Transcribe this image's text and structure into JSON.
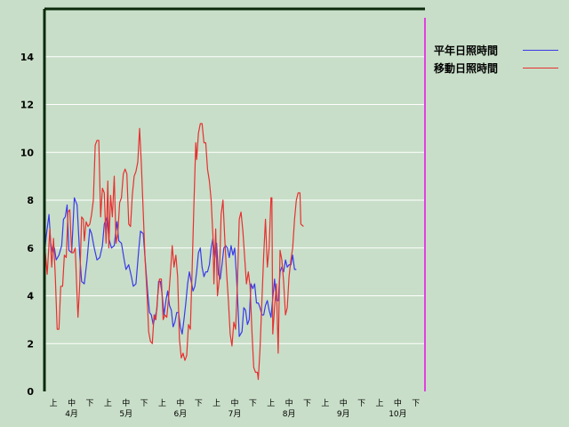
{
  "chart_data": {
    "type": "line",
    "ylim": [
      0,
      16
    ],
    "yticks": [
      0,
      2,
      4,
      6,
      8,
      10,
      12,
      14
    ],
    "grid": true,
    "legend_position": "top-right",
    "x_range": [
      0,
      21
    ],
    "x_sublabels": [
      "上",
      "中",
      "下",
      "上",
      "中",
      "下",
      "上",
      "中",
      "下",
      "上",
      "中",
      "下",
      "上",
      "中",
      "下",
      "上",
      "中",
      "下",
      "上",
      "中",
      "下"
    ],
    "months": [
      "4月",
      "5月",
      "6月",
      "7月",
      "8月",
      "9月",
      "10月"
    ],
    "series": [
      {
        "name": "平年日照時間",
        "color": "#3a3ae8",
        "points": [
          [
            0.0,
            5.7
          ],
          [
            0.1,
            6.5
          ],
          [
            0.25,
            7.4
          ],
          [
            0.35,
            6.2
          ],
          [
            0.45,
            5.8
          ],
          [
            0.55,
            6.0
          ],
          [
            0.65,
            5.5
          ],
          [
            0.8,
            5.7
          ],
          [
            0.95,
            6.1
          ],
          [
            1.05,
            7.2
          ],
          [
            1.15,
            7.3
          ],
          [
            1.25,
            7.8
          ],
          [
            1.35,
            5.9
          ],
          [
            1.5,
            5.8
          ],
          [
            1.65,
            8.1
          ],
          [
            1.8,
            7.8
          ],
          [
            1.95,
            5.7
          ],
          [
            2.05,
            4.6
          ],
          [
            2.2,
            4.5
          ],
          [
            2.35,
            5.5
          ],
          [
            2.5,
            6.8
          ],
          [
            2.6,
            6.6
          ],
          [
            2.75,
            6.0
          ],
          [
            2.9,
            5.5
          ],
          [
            3.05,
            5.6
          ],
          [
            3.2,
            6.1
          ],
          [
            3.3,
            7.0
          ],
          [
            3.45,
            7.3
          ],
          [
            3.55,
            6.4
          ],
          [
            3.7,
            6.0
          ],
          [
            3.85,
            6.1
          ],
          [
            4.0,
            7.1
          ],
          [
            4.1,
            6.3
          ],
          [
            4.25,
            6.2
          ],
          [
            4.4,
            5.5
          ],
          [
            4.5,
            5.1
          ],
          [
            4.65,
            5.3
          ],
          [
            4.8,
            4.8
          ],
          [
            4.9,
            4.4
          ],
          [
            5.05,
            4.5
          ],
          [
            5.2,
            5.9
          ],
          [
            5.3,
            6.7
          ],
          [
            5.45,
            6.6
          ],
          [
            5.55,
            5.6
          ],
          [
            5.7,
            4.1
          ],
          [
            5.8,
            3.3
          ],
          [
            5.9,
            3.2
          ],
          [
            6.0,
            2.8
          ],
          [
            6.1,
            3.1
          ],
          [
            6.2,
            3.4
          ],
          [
            6.3,
            4.6
          ],
          [
            6.4,
            4.6
          ],
          [
            6.5,
            4.0
          ],
          [
            6.6,
            3.2
          ],
          [
            6.7,
            3.8
          ],
          [
            6.8,
            4.2
          ],
          [
            6.9,
            3.6
          ],
          [
            7.0,
            3.4
          ],
          [
            7.1,
            2.7
          ],
          [
            7.2,
            2.9
          ],
          [
            7.3,
            3.3
          ],
          [
            7.4,
            3.3
          ],
          [
            7.5,
            2.7
          ],
          [
            7.6,
            2.4
          ],
          [
            7.7,
            3.0
          ],
          [
            7.8,
            3.7
          ],
          [
            7.9,
            4.5
          ],
          [
            8.0,
            5.0
          ],
          [
            8.1,
            4.6
          ],
          [
            8.2,
            4.2
          ],
          [
            8.3,
            4.4
          ],
          [
            8.4,
            5.0
          ],
          [
            8.5,
            5.8
          ],
          [
            8.6,
            6.0
          ],
          [
            8.7,
            5.2
          ],
          [
            8.8,
            4.8
          ],
          [
            8.9,
            5.0
          ],
          [
            9.0,
            5.0
          ],
          [
            9.1,
            5.3
          ],
          [
            9.2,
            6.0
          ],
          [
            9.3,
            6.4
          ],
          [
            9.4,
            5.6
          ],
          [
            9.5,
            6.2
          ],
          [
            9.6,
            4.9
          ],
          [
            9.7,
            4.7
          ],
          [
            9.8,
            5.3
          ],
          [
            9.9,
            6.0
          ],
          [
            10.0,
            6.1
          ],
          [
            10.1,
            6.0
          ],
          [
            10.2,
            5.6
          ],
          [
            10.3,
            6.1
          ],
          [
            10.4,
            5.7
          ],
          [
            10.5,
            6.0
          ],
          [
            10.6,
            4.8
          ],
          [
            10.7,
            3.2
          ],
          [
            10.75,
            2.3
          ],
          [
            10.9,
            2.5
          ],
          [
            11.0,
            3.5
          ],
          [
            11.1,
            3.4
          ],
          [
            11.2,
            2.8
          ],
          [
            11.3,
            3.0
          ],
          [
            11.4,
            4.5
          ],
          [
            11.5,
            4.3
          ],
          [
            11.6,
            4.5
          ],
          [
            11.7,
            3.7
          ],
          [
            11.8,
            3.7
          ],
          [
            11.9,
            3.5
          ],
          [
            12.0,
            3.2
          ],
          [
            12.1,
            3.2
          ],
          [
            12.2,
            3.6
          ],
          [
            12.3,
            3.8
          ],
          [
            12.4,
            3.4
          ],
          [
            12.5,
            3.1
          ],
          [
            12.6,
            3.9
          ],
          [
            12.7,
            4.7
          ],
          [
            12.8,
            3.8
          ],
          [
            12.9,
            3.8
          ],
          [
            13.0,
            5.0
          ],
          [
            13.1,
            5.2
          ],
          [
            13.2,
            5.0
          ],
          [
            13.3,
            5.5
          ],
          [
            13.4,
            5.2
          ],
          [
            13.5,
            5.3
          ],
          [
            13.6,
            5.3
          ],
          [
            13.7,
            5.7
          ],
          [
            13.8,
            5.1
          ],
          [
            13.9,
            5.1
          ]
        ]
      },
      {
        "name": "移動日照時間",
        "color": "#e83030",
        "points": [
          [
            0.0,
            0.1
          ],
          [
            0.05,
            5.8
          ],
          [
            0.15,
            4.9
          ],
          [
            0.3,
            6.8
          ],
          [
            0.4,
            5.2
          ],
          [
            0.5,
            6.4
          ],
          [
            0.6,
            4.8
          ],
          [
            0.7,
            2.6
          ],
          [
            0.8,
            2.6
          ],
          [
            0.9,
            4.4
          ],
          [
            1.0,
            4.4
          ],
          [
            1.1,
            5.7
          ],
          [
            1.2,
            5.6
          ],
          [
            1.3,
            7.5
          ],
          [
            1.4,
            7.6
          ],
          [
            1.5,
            5.8
          ],
          [
            1.6,
            5.8
          ],
          [
            1.7,
            6.0
          ],
          [
            1.8,
            4.0
          ],
          [
            1.85,
            3.1
          ],
          [
            1.95,
            4.5
          ],
          [
            2.05,
            7.3
          ],
          [
            2.15,
            7.2
          ],
          [
            2.2,
            6.3
          ],
          [
            2.3,
            7.1
          ],
          [
            2.4,
            6.9
          ],
          [
            2.5,
            7.0
          ],
          [
            2.6,
            7.4
          ],
          [
            2.7,
            8.0
          ],
          [
            2.8,
            10.3
          ],
          [
            2.9,
            10.5
          ],
          [
            3.0,
            10.5
          ],
          [
            3.1,
            7.3
          ],
          [
            3.2,
            8.5
          ],
          [
            3.3,
            8.3
          ],
          [
            3.4,
            6.2
          ],
          [
            3.5,
            8.8
          ],
          [
            3.55,
            6.0
          ],
          [
            3.65,
            8.2
          ],
          [
            3.75,
            7.3
          ],
          [
            3.85,
            9.0
          ],
          [
            3.95,
            6.2
          ],
          [
            4.05,
            6.6
          ],
          [
            4.15,
            7.9
          ],
          [
            4.25,
            8.1
          ],
          [
            4.35,
            9.1
          ],
          [
            4.45,
            9.3
          ],
          [
            4.55,
            9.1
          ],
          [
            4.65,
            7.0
          ],
          [
            4.75,
            6.9
          ],
          [
            4.85,
            8.2
          ],
          [
            4.95,
            9.0
          ],
          [
            5.05,
            9.2
          ],
          [
            5.15,
            9.6
          ],
          [
            5.25,
            11.0
          ],
          [
            5.35,
            9.5
          ],
          [
            5.45,
            7.5
          ],
          [
            5.55,
            5.6
          ],
          [
            5.65,
            4.2
          ],
          [
            5.75,
            2.5
          ],
          [
            5.85,
            2.1
          ],
          [
            5.95,
            2.0
          ],
          [
            6.05,
            3.2
          ],
          [
            6.15,
            3.0
          ],
          [
            6.25,
            4.0
          ],
          [
            6.35,
            4.7
          ],
          [
            6.45,
            4.7
          ],
          [
            6.55,
            3.0
          ],
          [
            6.65,
            3.2
          ],
          [
            6.75,
            3.1
          ],
          [
            6.85,
            3.9
          ],
          [
            6.95,
            4.9
          ],
          [
            7.05,
            6.1
          ],
          [
            7.15,
            5.2
          ],
          [
            7.25,
            5.7
          ],
          [
            7.35,
            4.8
          ],
          [
            7.45,
            2.2
          ],
          [
            7.55,
            1.4
          ],
          [
            7.65,
            1.6
          ],
          [
            7.75,
            1.3
          ],
          [
            7.85,
            1.5
          ],
          [
            7.95,
            2.8
          ],
          [
            8.05,
            2.6
          ],
          [
            8.15,
            5.1
          ],
          [
            8.25,
            7.8
          ],
          [
            8.35,
            10.4
          ],
          [
            8.4,
            9.7
          ],
          [
            8.5,
            10.8
          ],
          [
            8.6,
            11.2
          ],
          [
            8.7,
            11.2
          ],
          [
            8.8,
            10.4
          ],
          [
            8.9,
            10.4
          ],
          [
            9.0,
            9.3
          ],
          [
            9.1,
            8.8
          ],
          [
            9.2,
            8.0
          ],
          [
            9.3,
            6.5
          ],
          [
            9.35,
            4.5
          ],
          [
            9.45,
            6.8
          ],
          [
            9.55,
            4.0
          ],
          [
            9.65,
            4.7
          ],
          [
            9.75,
            7.4
          ],
          [
            9.85,
            8.0
          ],
          [
            9.95,
            6.4
          ],
          [
            10.05,
            5.0
          ],
          [
            10.15,
            3.8
          ],
          [
            10.25,
            2.4
          ],
          [
            10.35,
            1.9
          ],
          [
            10.45,
            2.9
          ],
          [
            10.55,
            2.6
          ],
          [
            10.65,
            4.6
          ],
          [
            10.75,
            7.2
          ],
          [
            10.85,
            7.5
          ],
          [
            10.95,
            6.7
          ],
          [
            11.05,
            5.6
          ],
          [
            11.15,
            4.5
          ],
          [
            11.25,
            5.0
          ],
          [
            11.35,
            4.4
          ],
          [
            11.45,
            2.5
          ],
          [
            11.55,
            1.0
          ],
          [
            11.65,
            0.8
          ],
          [
            11.75,
            0.8
          ],
          [
            11.8,
            0.5
          ],
          [
            11.9,
            1.8
          ],
          [
            12.0,
            3.8
          ],
          [
            12.1,
            5.7
          ],
          [
            12.2,
            7.2
          ],
          [
            12.3,
            5.2
          ],
          [
            12.4,
            6.0
          ],
          [
            12.5,
            8.1
          ],
          [
            12.55,
            8.1
          ],
          [
            12.6,
            2.4
          ],
          [
            12.7,
            3.5
          ],
          [
            12.8,
            4.5
          ],
          [
            12.9,
            1.6
          ],
          [
            13.0,
            5.9
          ],
          [
            13.1,
            5.5
          ],
          [
            13.2,
            4.6
          ],
          [
            13.3,
            3.2
          ],
          [
            13.4,
            3.5
          ],
          [
            13.5,
            4.8
          ],
          [
            13.6,
            5.5
          ],
          [
            13.7,
            6.0
          ],
          [
            13.8,
            7.2
          ],
          [
            13.9,
            8.0
          ],
          [
            14.0,
            8.3
          ],
          [
            14.1,
            8.3
          ],
          [
            14.15,
            7.0
          ],
          [
            14.3,
            6.9
          ]
        ]
      }
    ]
  }
}
